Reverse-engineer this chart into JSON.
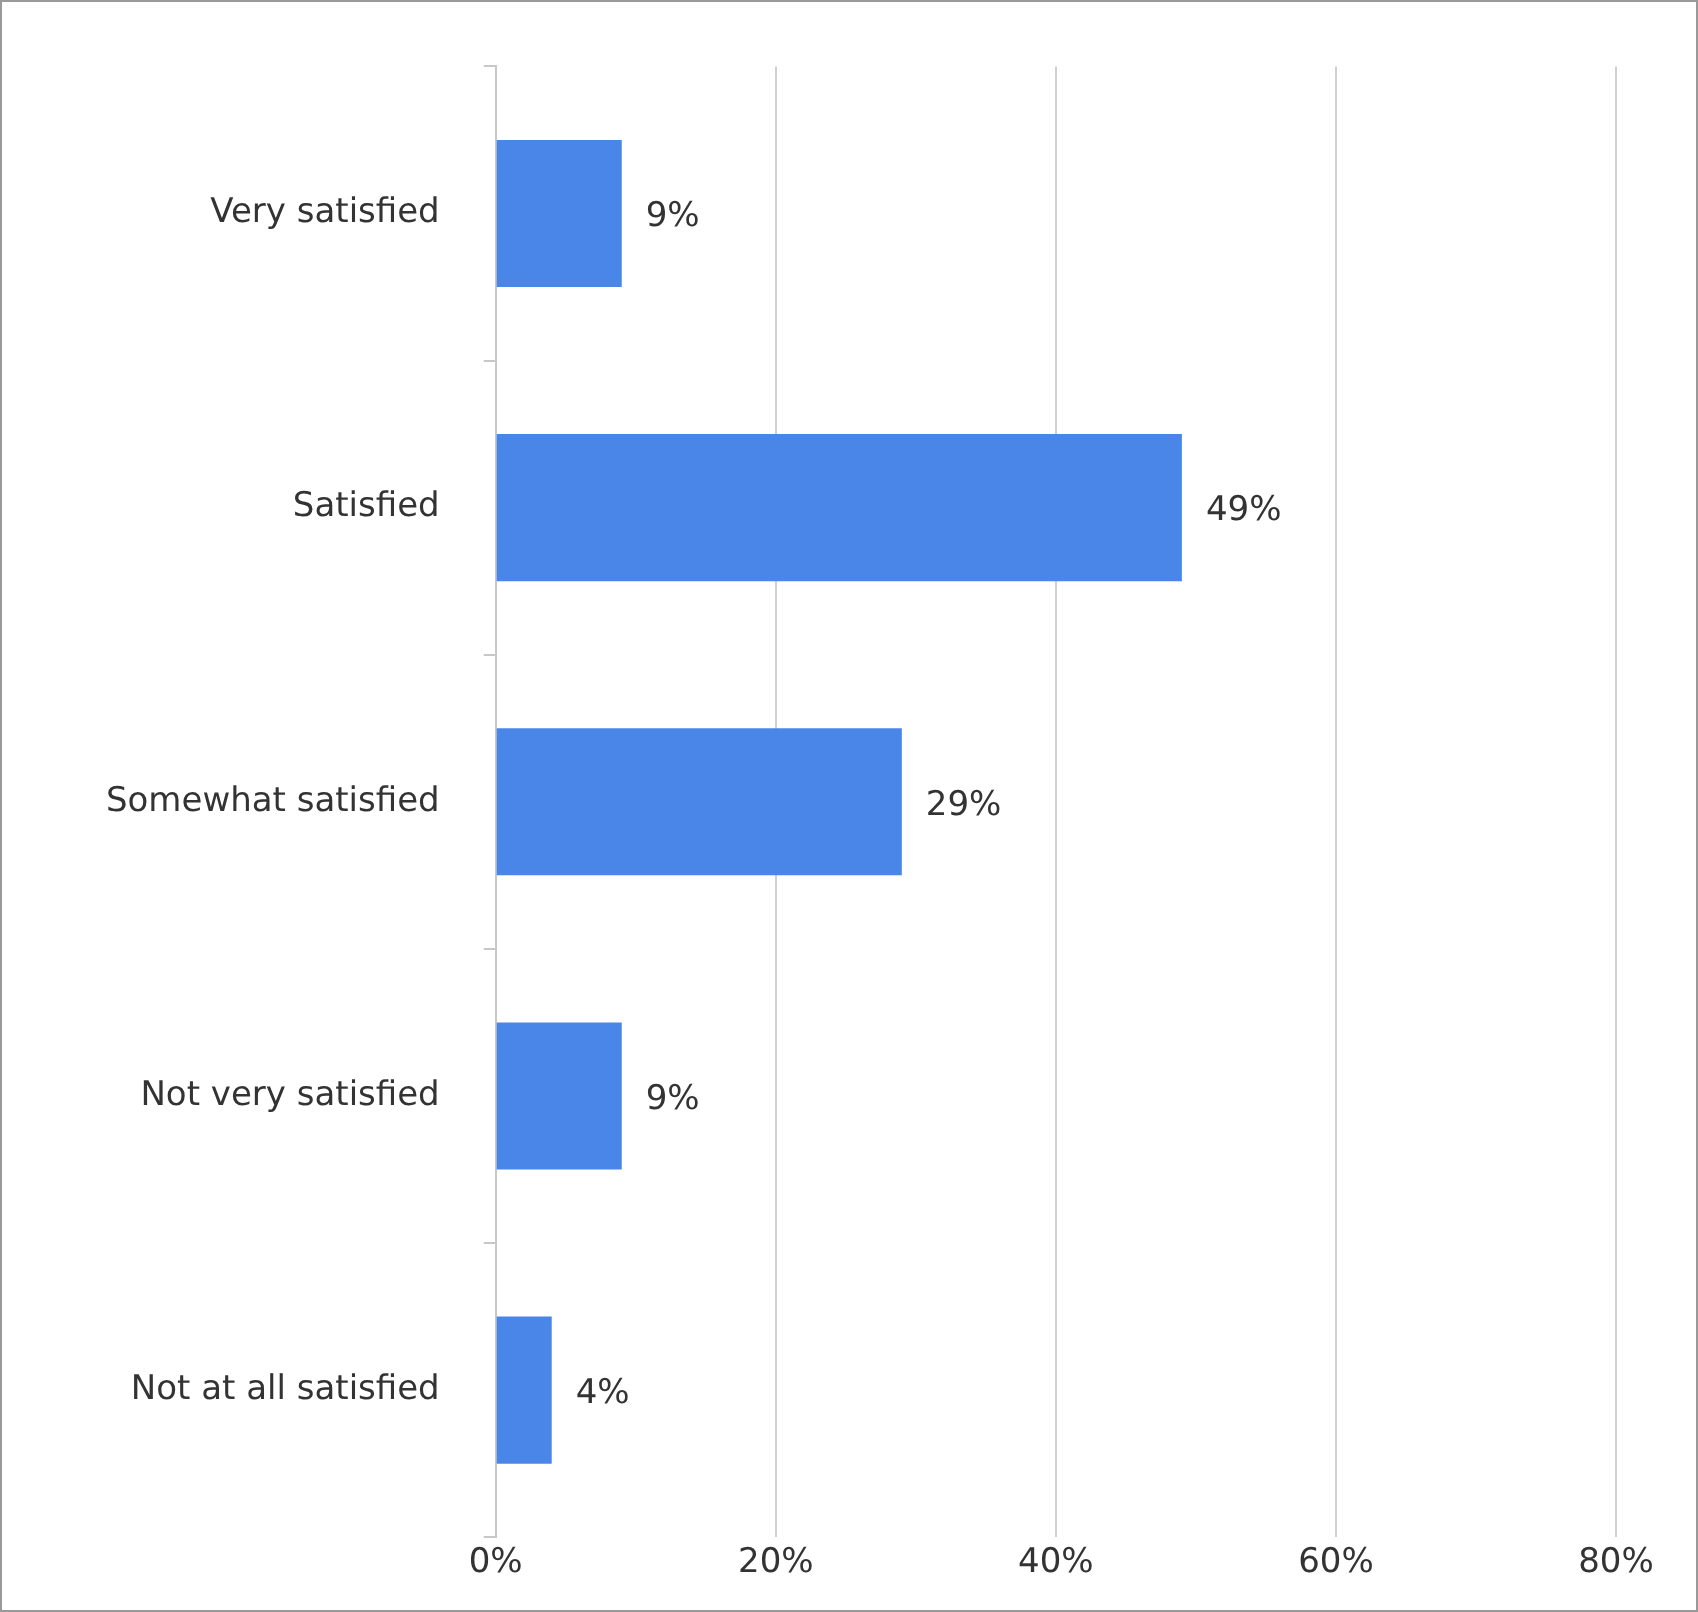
{
  "chart_data": {
    "type": "bar",
    "orientation": "horizontal",
    "categories": [
      "Very satisfied",
      "Satisfied",
      "Somewhat satisfied",
      "Not very satisfied",
      "Not at all satisfied"
    ],
    "values": [
      9,
      49,
      29,
      9,
      4
    ],
    "value_labels": [
      "9%",
      "49%",
      "29%",
      "9%",
      "4%"
    ],
    "color": "#4a86e8",
    "xlim": [
      0,
      80
    ],
    "xticks": [
      {
        "value": 0,
        "label": "0%"
      },
      {
        "value": 20,
        "label": "20%"
      },
      {
        "value": 40,
        "label": "40%"
      },
      {
        "value": 60,
        "label": "60%"
      },
      {
        "value": 80,
        "label": "80%"
      }
    ],
    "grid": "x"
  }
}
